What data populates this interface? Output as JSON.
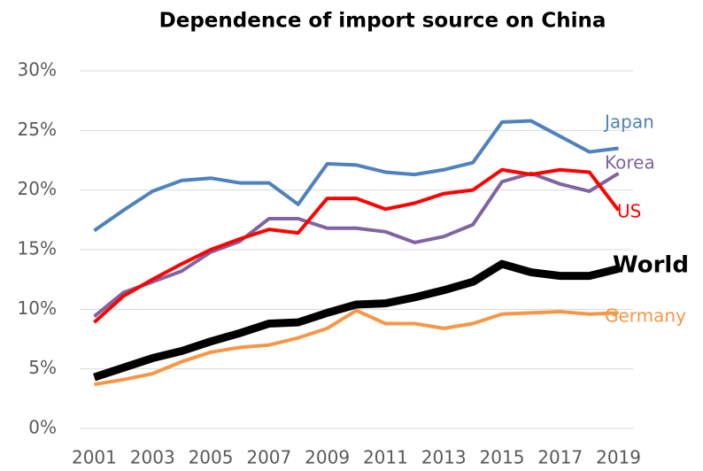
{
  "chart_data": {
    "type": "line",
    "title": "Dependence of import source on China",
    "categories": [
      "2001",
      null,
      "2003",
      null,
      "2005",
      null,
      "2007",
      null,
      "2009",
      null,
      "2011",
      null,
      "2013",
      null,
      "2015",
      null,
      "2017",
      null,
      "2019"
    ],
    "series": [
      {
        "name": "Japan",
        "color": "#4f81bd",
        "line_width": 4,
        "values": [
          16.6,
          18.3,
          19.9,
          20.8,
          21.0,
          20.6,
          20.6,
          18.8,
          22.2,
          22.1,
          21.5,
          21.3,
          21.7,
          22.3,
          25.7,
          25.8,
          24.5,
          23.2,
          23.5
        ]
      },
      {
        "name": "Korea",
        "color": "#8064a2",
        "line_width": 4,
        "values": [
          9.4,
          11.4,
          12.3,
          13.2,
          14.8,
          15.7,
          17.6,
          17.6,
          16.8,
          16.8,
          16.5,
          15.6,
          16.1,
          17.1,
          20.7,
          21.4,
          20.5,
          19.9,
          21.4
        ]
      },
      {
        "name": "US",
        "color": "#ff0000",
        "line_width": 4,
        "values": [
          8.9,
          11.1,
          12.5,
          13.8,
          15.0,
          15.9,
          16.7,
          16.4,
          19.3,
          19.3,
          18.4,
          18.9,
          19.7,
          20.0,
          21.7,
          21.3,
          21.7,
          21.5,
          18.3
        ]
      },
      {
        "name": "World",
        "color": "#000000",
        "line_width": 9,
        "values": [
          4.3,
          5.1,
          5.9,
          6.5,
          7.3,
          8.0,
          8.8,
          8.9,
          9.7,
          10.4,
          10.5,
          11.0,
          11.6,
          12.3,
          13.8,
          13.1,
          12.8,
          12.8,
          13.4
        ]
      },
      {
        "name": "Germany",
        "color": "#f79646",
        "line_width": 4,
        "values": [
          3.7,
          4.1,
          4.6,
          5.6,
          6.4,
          6.8,
          7.0,
          7.6,
          8.4,
          9.9,
          8.8,
          8.8,
          8.4,
          8.8,
          9.6,
          9.7,
          9.8,
          9.6,
          9.7
        ]
      }
    ],
    "ylim": [
      0,
      30
    ],
    "yticks": [
      {
        "value": 0,
        "label": "0%"
      },
      {
        "value": 5,
        "label": "5%"
      },
      {
        "value": 10,
        "label": "10%"
      },
      {
        "value": 15,
        "label": "15%"
      },
      {
        "value": 20,
        "label": "20%"
      },
      {
        "value": 25,
        "label": "25%"
      },
      {
        "value": 30,
        "label": "30%"
      }
    ],
    "grid": true
  }
}
